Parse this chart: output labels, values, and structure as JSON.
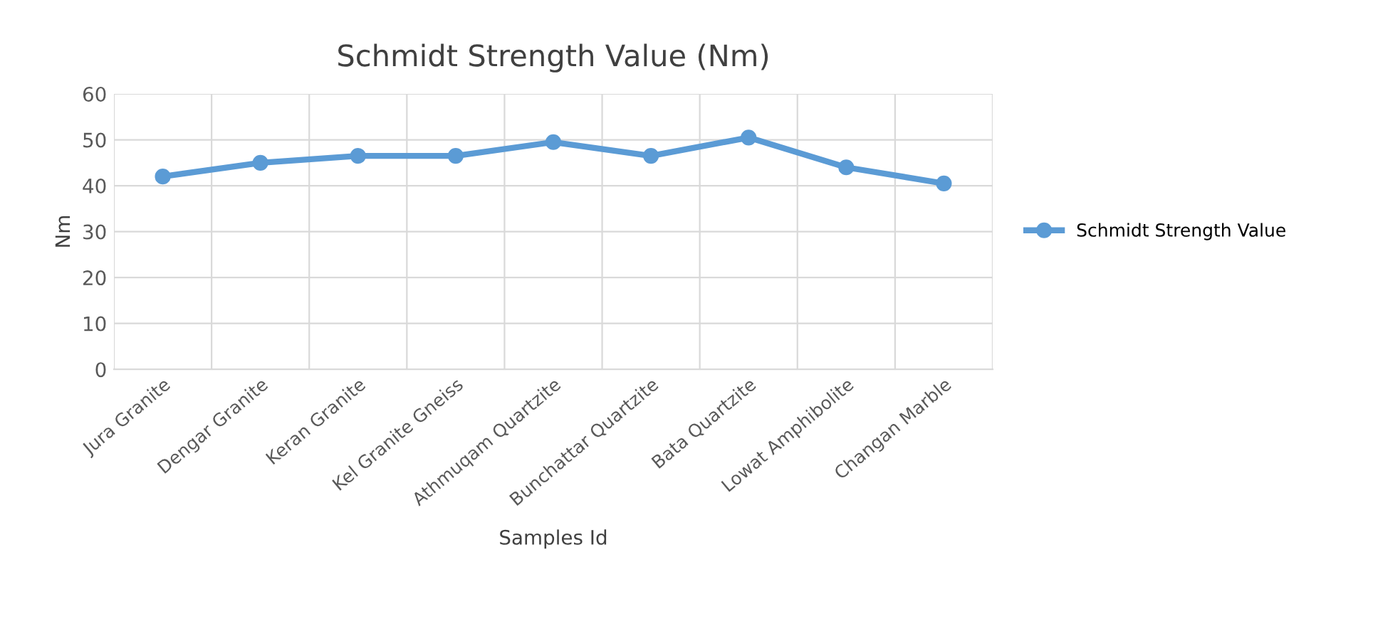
{
  "chart_data": {
    "type": "line",
    "title": "Schmidt Strength Value (Nm)",
    "xlabel": "Samples Id",
    "ylabel": "Nm",
    "categories": [
      "Jura Granite",
      "Dengar Granite",
      "Keran Granite",
      "Kel Granite Gneiss",
      "Athmuqam Quartzite",
      "Bunchattar Quartzite",
      "Bata Quartzite",
      "Lowat Amphibolite",
      "Changan Marble"
    ],
    "series": [
      {
        "name": "Schmidt Strength Value",
        "color": "#5b9bd5",
        "values": [
          42,
          45,
          46.5,
          46.5,
          49.5,
          46.5,
          50.5,
          44,
          40.5
        ]
      }
    ],
    "ylim": [
      0,
      60
    ],
    "yticks": [
      0,
      10,
      20,
      30,
      40,
      50,
      60
    ],
    "grid": true,
    "legend": "right",
    "marker": "circle",
    "line_style": "solid"
  }
}
